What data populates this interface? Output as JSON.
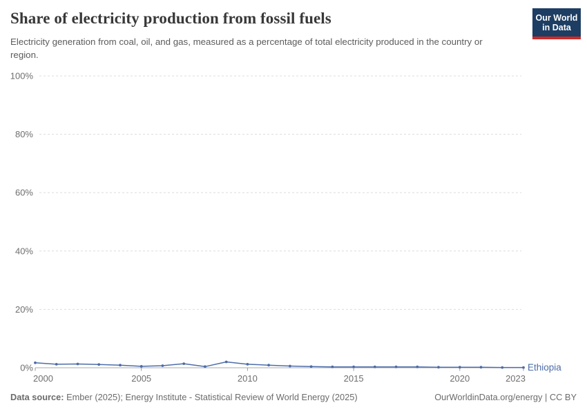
{
  "header": {
    "title": "Share of electricity production from fossil fuels",
    "subtitle": "Electricity generation from coal, oil, and gas, measured as a percentage of total electricity produced in the country or region.",
    "logo": {
      "line1": "Our World",
      "line2": "in Data"
    }
  },
  "colors": {
    "title": "#383838",
    "subtitle": "#5b5b5b",
    "axis_label": "#6e6e6e",
    "gridline": "#dcdcdc",
    "axis_line": "#a8a8a8",
    "tick_mark": "#999999",
    "series": "#4c6ca8",
    "logo_bg": "#1d3d63",
    "logo_accent": "#cf2a27",
    "footer_text": "#6b6b6b"
  },
  "chart_data": {
    "type": "line",
    "title": "Share of electricity production from fossil fuels",
    "xlabel": "",
    "ylabel": "",
    "ylim": [
      0,
      100
    ],
    "grid": "horizontal-dashed",
    "legend": "series-end-label",
    "yticks": [
      0,
      20,
      40,
      60,
      80,
      100
    ],
    "ytick_labels": [
      "0%",
      "20%",
      "40%",
      "60%",
      "80%",
      "100%"
    ],
    "xticks": [
      2000,
      2005,
      2010,
      2015,
      2020,
      2023
    ],
    "xtick_labels": [
      "2000",
      "2005",
      "2010",
      "2015",
      "2020",
      "2023"
    ],
    "x": [
      2000,
      2001,
      2002,
      2003,
      2004,
      2005,
      2006,
      2007,
      2008,
      2009,
      2010,
      2011,
      2012,
      2013,
      2014,
      2015,
      2016,
      2017,
      2018,
      2019,
      2020,
      2021,
      2022,
      2023
    ],
    "series": [
      {
        "name": "Ethiopia",
        "color": "#4c6ca8",
        "values": [
          1.7,
          1.2,
          1.3,
          1.1,
          0.9,
          0.5,
          0.7,
          1.4,
          0.4,
          2.0,
          1.2,
          0.9,
          0.6,
          0.4,
          0.3,
          0.3,
          0.3,
          0.3,
          0.3,
          0.2,
          0.2,
          0.2,
          0.1,
          0.1
        ]
      }
    ]
  },
  "footer": {
    "source_label": "Data source:",
    "source_text": "Ember (2025); Energy Institute - Statistical Review of World Energy (2025)",
    "right_text": "OurWorldinData.org/energy | CC BY"
  }
}
